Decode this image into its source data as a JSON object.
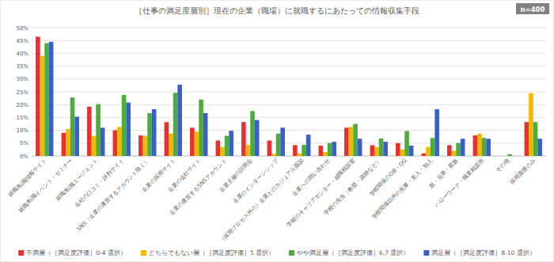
{
  "chart_data": {
    "type": "bar",
    "title": "［仕事の満足度層別］現在の企業（職場）に就職するにあたっての情報収集手段",
    "subtitle": "n=400",
    "categories": [
      "就職/転職情報サイト",
      "就職/転職イベント・セミナー",
      "就職/転職エージェント",
      "会社の口コミ・評判サイト",
      "SNS（企業の運営するアカウント除く）",
      "企業の採用サイト",
      "企業の会社サイト",
      "企業の運営するSNSアカウント",
      "企業主催の説明会",
      "企業のインターンシップ",
      "（採用プロセス外の）企業とのカジュアル面談",
      "企業への問い合わせ",
      "学校のキャリアセンター・就職相談室",
      "学校の先生（教授・講師など）",
      "学校関係のOB・OG",
      "学校関係以外の先輩・友人・知人",
      "親・兄弟・親族",
      "ハローワーク・職業相談所",
      "その他",
      "採用面接のみ"
    ],
    "series": [
      {
        "name": "不満層（［満足度評価］0-4 選択）",
        "color": "#e8312f",
        "values": [
          46.5,
          9,
          19.2,
          10,
          8,
          13.2,
          11,
          6,
          13.2,
          6,
          4.2,
          4,
          11,
          4.2,
          5,
          1,
          4.2,
          8,
          0,
          13.2
        ]
      },
      {
        "name": "どちらでもない層（［満足度評価］5 選択）",
        "color": "#f5b800",
        "values": [
          39,
          10.5,
          7.8,
          11.3,
          7.8,
          8.7,
          9.5,
          3.5,
          4.3,
          0.8,
          1,
          1.5,
          11.3,
          3.5,
          2.5,
          3.5,
          2,
          8.7,
          0,
          24.5
        ]
      },
      {
        "name": "やや満足層（［満足度評価］6,7 選択）",
        "color": "#4cad3a",
        "values": [
          44,
          22.8,
          20.2,
          23.8,
          16.7,
          24.6,
          22,
          7.8,
          17.5,
          8.7,
          4.3,
          5,
          12.5,
          6.8,
          9.7,
          7,
          5,
          7,
          0.7,
          13.2
        ]
      },
      {
        "name": "満足層（［満足度評価］8-10 選択）",
        "color": "#3a5fc8",
        "values": [
          44.5,
          15.3,
          11,
          20.8,
          18.2,
          27.8,
          16.7,
          9.8,
          14,
          11,
          8.3,
          5.5,
          6.7,
          5.5,
          4,
          18.2,
          6.7,
          6.7,
          0,
          6.7
        ]
      }
    ],
    "ylim": [
      0,
      50
    ],
    "yticks": [
      {
        "value": 0,
        "label": "0%"
      },
      {
        "value": 5,
        "label": "5%"
      },
      {
        "value": 10,
        "label": "10%"
      },
      {
        "value": 15,
        "label": "15%"
      },
      {
        "value": 20,
        "label": "20%"
      },
      {
        "value": 25,
        "label": "25%"
      },
      {
        "value": 30,
        "label": "30%"
      },
      {
        "value": 35,
        "label": "35%"
      },
      {
        "value": 40,
        "label": "40%"
      },
      {
        "value": 45,
        "label": "45%"
      },
      {
        "value": 50,
        "label": "50%"
      }
    ],
    "grid": true,
    "legend": "bottom"
  }
}
